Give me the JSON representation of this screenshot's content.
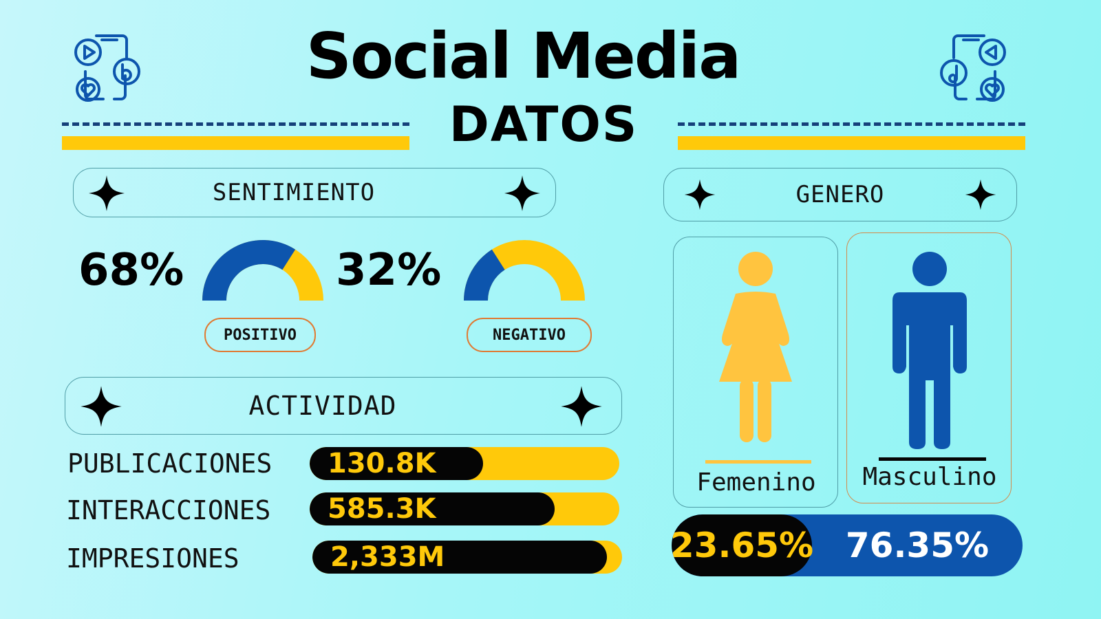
{
  "header": {
    "title": "Social Media",
    "subtitle": "DATOS",
    "left_icon": "social-media-phone-icon",
    "right_icon": "social-media-phone-icon"
  },
  "colors": {
    "blue": "#0d55ad",
    "yellow": "#ffc90a",
    "black": "#050505",
    "dark_navy": "#15407a",
    "border_teal": "#4f9da6",
    "border_orange": "#e07a33"
  },
  "sentiment": {
    "heading": "SENTIMIENTO",
    "positive": {
      "percent_label": "68%",
      "value": 68,
      "tag": "POSITIVO"
    },
    "negative": {
      "percent_label": "32%",
      "value": 32,
      "tag": "NEGATIVO"
    }
  },
  "activity": {
    "heading": "ACTIVIDAD",
    "metrics": [
      {
        "label": "PUBLICACIONES",
        "value": "130.8K",
        "fill_fraction": 0.56
      },
      {
        "label": "INTERACCIONES",
        "value": "585.3K",
        "fill_fraction": 0.79
      },
      {
        "label": "IMPRESIONES",
        "value": "2,333M",
        "fill_fraction": 0.95
      }
    ]
  },
  "gender": {
    "heading": "GENERO",
    "female": {
      "label": "Femenino",
      "percent": "23.65%",
      "value": 23.65,
      "icon": "female-person-icon"
    },
    "male": {
      "label": "Masculino",
      "percent": "76.35%",
      "value": 76.35,
      "icon": "male-person-icon"
    }
  }
}
